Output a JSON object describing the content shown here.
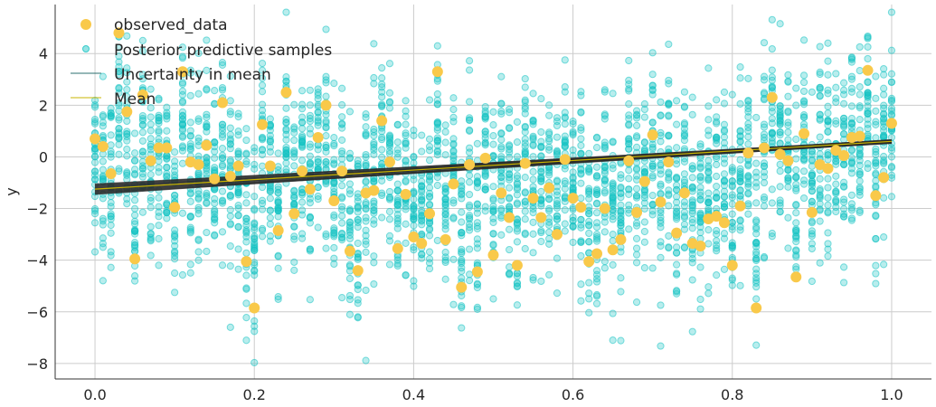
{
  "chart_data": {
    "type": "scatter",
    "title": "",
    "xlabel": "",
    "ylabel": "y",
    "xlim": [
      -0.05,
      1.05
    ],
    "ylim": [
      -8.6,
      5.9
    ],
    "xticks": [
      0.0,
      0.2,
      0.4,
      0.6,
      0.8,
      1.0
    ],
    "xtick_labels": [
      "0.0",
      "0.2",
      "0.4",
      "0.6",
      "0.8",
      "1.0"
    ],
    "yticks": [
      -8,
      -6,
      -4,
      -2,
      0,
      2,
      4
    ],
    "ytick_labels": [
      "−8",
      "−6",
      "−4",
      "−2",
      "0",
      "2",
      "4"
    ],
    "grid": true,
    "legend_position": "top-left",
    "colors": {
      "observed": "#f9c94a",
      "posterior": "#15c3c3",
      "uncertainty": "#2b2b2b",
      "mean": "#c8b400",
      "grid": "#cccccc"
    },
    "series": [
      {
        "name": "observed_data",
        "type": "scatter"
      },
      {
        "name": "Posterior predictive samples",
        "type": "scatter"
      },
      {
        "name": "Uncertainty in mean",
        "type": "line"
      },
      {
        "name": "Mean",
        "type": "line"
      }
    ],
    "observed": {
      "x": [
        0.0,
        0.01,
        0.02,
        0.03,
        0.04,
        0.05,
        0.06,
        0.07,
        0.08,
        0.09,
        0.1,
        0.11,
        0.12,
        0.13,
        0.14,
        0.15,
        0.16,
        0.17,
        0.18,
        0.19,
        0.2,
        0.21,
        0.22,
        0.23,
        0.24,
        0.25,
        0.26,
        0.27,
        0.28,
        0.29,
        0.3,
        0.31,
        0.32,
        0.33,
        0.34,
        0.35,
        0.36,
        0.37,
        0.38,
        0.39,
        0.4,
        0.41,
        0.42,
        0.43,
        0.44,
        0.45,
        0.46,
        0.47,
        0.48,
        0.49,
        0.5,
        0.51,
        0.52,
        0.53,
        0.54,
        0.55,
        0.56,
        0.57,
        0.58,
        0.59,
        0.6,
        0.61,
        0.62,
        0.63,
        0.64,
        0.65,
        0.66,
        0.67,
        0.68,
        0.69,
        0.7,
        0.71,
        0.72,
        0.73,
        0.74,
        0.75,
        0.76,
        0.77,
        0.78,
        0.79,
        0.8,
        0.81,
        0.82,
        0.83,
        0.84,
        0.85,
        0.86,
        0.87,
        0.88,
        0.89,
        0.9,
        0.91,
        0.92,
        0.93,
        0.94,
        0.95,
        0.96,
        0.97,
        0.98,
        0.99,
        1.0
      ],
      "y": [
        0.7,
        0.4,
        -0.65,
        4.8,
        1.75,
        -3.95,
        2.4,
        -0.15,
        0.35,
        0.35,
        -1.95,
        3.3,
        -0.2,
        -0.3,
        0.45,
        -0.85,
        2.1,
        -0.75,
        -0.35,
        -4.05,
        -5.85,
        1.25,
        -0.35,
        -2.85,
        2.5,
        -2.2,
        -0.55,
        -1.25,
        0.75,
        2.0,
        -1.7,
        -0.55,
        -3.65,
        -4.4,
        -1.4,
        -1.3,
        1.4,
        -0.2,
        -3.55,
        -1.45,
        -3.1,
        -3.35,
        -2.2,
        3.3,
        -3.2,
        -1.05,
        -5.05,
        -0.3,
        -4.45,
        -0.05,
        -3.8,
        -1.4,
        -2.35,
        -4.2,
        -0.25,
        -1.6,
        -2.35,
        -1.2,
        -3.0,
        -0.1,
        -1.6,
        -1.95,
        -4.05,
        -3.75,
        -2.0,
        -3.6,
        -3.2,
        -0.15,
        -2.15,
        -0.95,
        0.85,
        -1.75,
        -0.2,
        -2.95,
        -1.4,
        -3.35,
        -3.45,
        -2.4,
        -2.3,
        -2.55,
        -4.2,
        -1.9,
        0.15,
        -5.85,
        0.35,
        2.3,
        0.1,
        -0.15,
        -4.65,
        0.9,
        -2.15,
        -0.3,
        -0.45,
        0.25,
        0.05,
        0.75,
        0.8,
        3.35,
        -1.5,
        -0.8,
        1.3
      ]
    },
    "posterior_summary": {
      "spread_sd": 1.7,
      "samples_per_x": 30
    },
    "mean_line": {
      "x": [
        0.0,
        1.0
      ],
      "y": [
        -1.25,
        0.6
      ]
    },
    "uncertainty_lines": {
      "count": 20,
      "intercept_range": [
        -1.45,
        -1.05
      ],
      "slope_range": [
        1.65,
        2.05
      ]
    }
  }
}
